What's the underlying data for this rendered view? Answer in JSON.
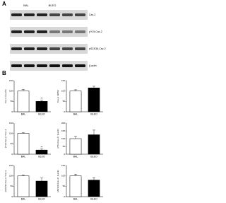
{
  "figure": {
    "panels": [
      "A",
      "B"
    ],
    "blot": {
      "groups": [
        "BAL",
        "BLEO"
      ],
      "rows": [
        "Cav-2",
        "pY19-Cav-2",
        "pS23/36-Cav-2",
        "β-actin"
      ]
    }
  },
  "chart_data": [
    {
      "type": "bar",
      "ylabel": "Cav-2 / β-actin",
      "categories": [
        "BAL",
        "BLEO"
      ],
      "values": [
        100,
        50
      ],
      "errors": [
        8,
        6
      ],
      "colors": [
        "#ffffff",
        "#000000"
      ],
      "significance": [
        null,
        "**"
      ],
      "ylim": [
        0,
        150
      ],
      "yticks": [
        0,
        50,
        100,
        150
      ]
    },
    {
      "type": "bar",
      "ylabel": "Cav-2 mRNA",
      "categories": [
        "BAL",
        "BLEO"
      ],
      "values": [
        100,
        115
      ],
      "errors": [
        6,
        8
      ],
      "colors": [
        "#ffffff",
        "#000000"
      ],
      "ylim": [
        0,
        150
      ],
      "yticks": [
        0,
        50,
        100,
        150
      ]
    },
    {
      "type": "bar",
      "ylabel": "pY19-Cav-2 / Cav-2",
      "categories": [
        "BAL",
        "BLEO"
      ],
      "values": [
        100,
        20
      ],
      "errors": [
        4,
        5
      ],
      "colors": [
        "#ffffff",
        "#000000"
      ],
      "significance": [
        null,
        "**"
      ],
      "ylim": [
        0,
        150
      ],
      "yticks": [
        0,
        50,
        100,
        150
      ]
    },
    {
      "type": "bar",
      "ylabel": "pY19-Cav-2 / β-actin",
      "categories": [
        "BAL",
        "BLEO"
      ],
      "values": [
        100,
        125
      ],
      "errors": [
        15,
        30
      ],
      "colors": [
        "#ffffff",
        "#000000"
      ],
      "ylim": [
        0,
        200
      ],
      "yticks": [
        0,
        50,
        100,
        150,
        200
      ]
    },
    {
      "type": "bar",
      "ylabel": "pS23/36-Cav-2 / Cav-2",
      "categories": [
        "BAL",
        "BLEO"
      ],
      "values": [
        100,
        75
      ],
      "errors": [
        5,
        15
      ],
      "colors": [
        "#ffffff",
        "#000000"
      ],
      "ylim": [
        0,
        150
      ],
      "yticks": [
        0,
        50,
        100,
        150
      ]
    },
    {
      "type": "bar",
      "ylabel": "pS23/36-Cav-2 / β-actin",
      "categories": [
        "BAL",
        "BLEO"
      ],
      "values": [
        100,
        80
      ],
      "errors": [
        8,
        12
      ],
      "colors": [
        "#ffffff",
        "#000000"
      ],
      "ylim": [
        0,
        150
      ],
      "yticks": [
        0,
        50,
        100,
        150
      ]
    }
  ]
}
